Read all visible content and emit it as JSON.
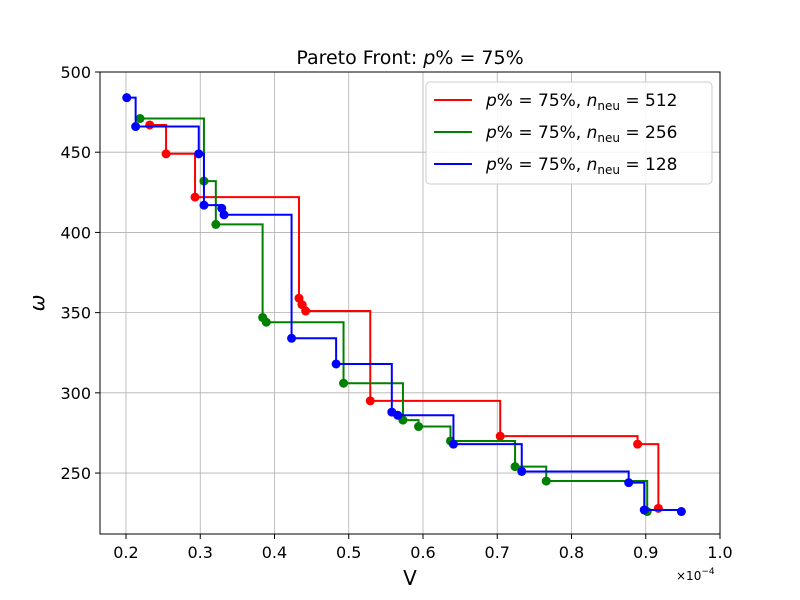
{
  "chart_data": {
    "type": "line",
    "title_prefix": "Pareto Front:  ",
    "title_var": "p",
    "title_suffix": "% = 75%",
    "xlabel": "V",
    "ylabel": "ω",
    "x_multiplier": "×10",
    "x_multiplier_exp": "−4",
    "xlim": [
      0.165,
      1.0
    ],
    "ylim": [
      212,
      500
    ],
    "xticks": [
      0.2,
      0.3,
      0.4,
      0.5,
      0.6,
      0.7,
      0.8,
      0.9,
      1.0
    ],
    "xtick_labels": [
      "0.2",
      "0.3",
      "0.4",
      "0.5",
      "0.6",
      "0.7",
      "0.8",
      "0.9",
      "1.0"
    ],
    "yticks": [
      250,
      300,
      350,
      400,
      450,
      500
    ],
    "ytick_labels": [
      "250",
      "300",
      "350",
      "400",
      "450",
      "500"
    ],
    "grid": true,
    "legend_position": "top-right",
    "series": [
      {
        "name": "p% = 75%, n_neu = 512",
        "legend_p": "p",
        "legend_mid": "% = 75%,  ",
        "legend_n": "n",
        "legend_sub": "neu",
        "legend_val": " = 512",
        "color": "#ff0000",
        "points": [
          [
            0.232,
            467
          ],
          [
            0.254,
            449
          ],
          [
            0.293,
            422
          ],
          [
            0.433,
            359
          ],
          [
            0.437,
            355
          ],
          [
            0.442,
            351
          ],
          [
            0.529,
            295
          ],
          [
            0.704,
            273
          ],
          [
            0.889,
            268
          ],
          [
            0.917,
            228
          ]
        ]
      },
      {
        "name": "p% = 75%, n_neu = 256",
        "legend_p": "p",
        "legend_mid": "% = 75%,  ",
        "legend_n": "n",
        "legend_sub": "neu",
        "legend_val": " = 256",
        "color": "#008000",
        "points": [
          [
            0.219,
            471
          ],
          [
            0.305,
            432
          ],
          [
            0.321,
            405
          ],
          [
            0.384,
            347
          ],
          [
            0.389,
            344
          ],
          [
            0.493,
            306
          ],
          [
            0.573,
            283
          ],
          [
            0.594,
            279
          ],
          [
            0.637,
            270
          ],
          [
            0.724,
            254
          ],
          [
            0.766,
            245
          ],
          [
            0.902,
            226
          ]
        ]
      },
      {
        "name": "p% = 75%, n_neu = 128",
        "legend_p": "p",
        "legend_mid": "% = 75%,  ",
        "legend_n": "n",
        "legend_sub": "neu",
        "legend_val": " = 128",
        "color": "#0000ff",
        "points": [
          [
            0.201,
            484
          ],
          [
            0.213,
            466
          ],
          [
            0.298,
            449
          ],
          [
            0.305,
            417
          ],
          [
            0.329,
            415
          ],
          [
            0.332,
            411
          ],
          [
            0.423,
            334
          ],
          [
            0.483,
            318
          ],
          [
            0.558,
            288
          ],
          [
            0.566,
            286
          ],
          [
            0.641,
            268
          ],
          [
            0.733,
            251
          ],
          [
            0.877,
            244
          ],
          [
            0.898,
            227
          ],
          [
            0.948,
            226
          ]
        ]
      }
    ]
  }
}
